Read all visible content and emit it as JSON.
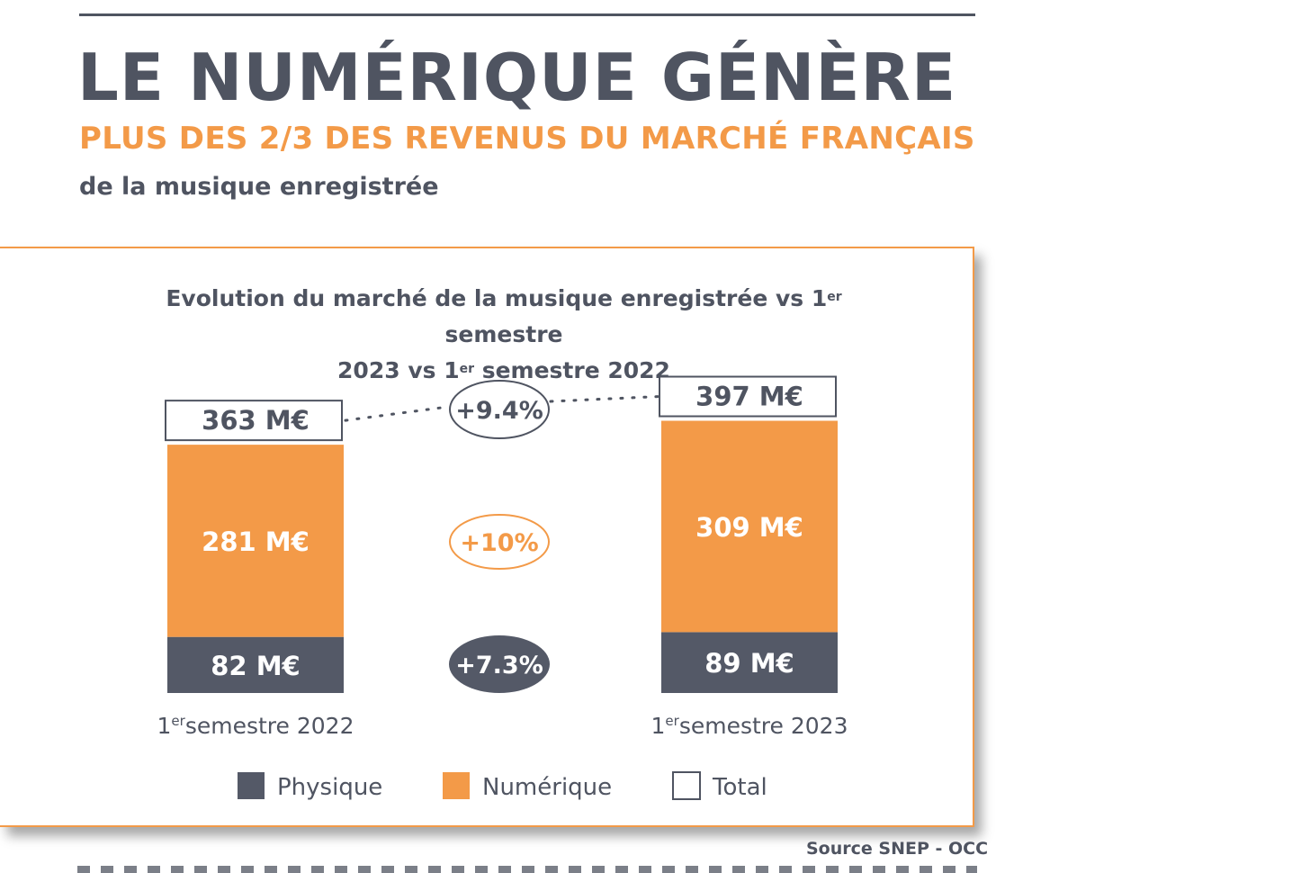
{
  "header": {
    "title": "LE NUMÉRIQUE GÉNÈRE",
    "subtitle": "PLUS DES 2/3 DES REVENUS DU MARCHÉ FRANÇAIS",
    "tagline": "de la musique enregistrée"
  },
  "chart_title": {
    "line1_before": "Evolution du marché de la musique enregistrée vs 1",
    "line1_sup": "er",
    "line1_after": " semestre",
    "line2_before": "2023 vs 1",
    "line2_sup": "er",
    "line2_after": " semestre 2022"
  },
  "source": "Source SNEP - OCC",
  "colors": {
    "physique": "#545967",
    "numerique": "#f39a48",
    "text": "#4f5461",
    "white": "#ffffff"
  },
  "chart_data": {
    "type": "bar",
    "stacked": true,
    "categories": [
      {
        "num": "1",
        "sup": "er",
        "rest": "semestre 2022"
      },
      {
        "num": "1",
        "sup": "er",
        "rest": "semestre 2023"
      }
    ],
    "series": [
      {
        "name": "Physique",
        "values": [
          82,
          89
        ],
        "labels": [
          "82 M€",
          "89 M€"
        ]
      },
      {
        "name": "Numérique",
        "values": [
          281,
          309
        ],
        "labels": [
          "281 M€",
          "309 M€"
        ]
      }
    ],
    "totals": {
      "name": "Total",
      "values": [
        363,
        397
      ],
      "labels": [
        "363 M€",
        "397 M€"
      ]
    },
    "growth": {
      "total": "+9.4%",
      "numerique": "+10%",
      "physique": "+7.3%"
    },
    "legend": [
      "Physique",
      "Numérique",
      "Total"
    ],
    "legend_position": "bottom",
    "grid": false
  }
}
